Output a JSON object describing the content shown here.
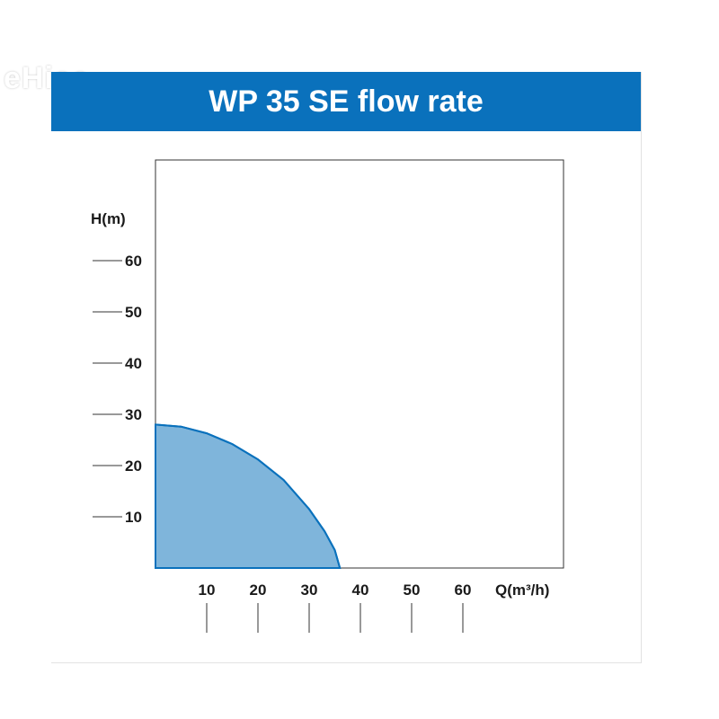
{
  "watermark": "eHisa",
  "colors": {
    "banner": "#0a71bc",
    "fill": "#7fb5db",
    "curve": "#0a71bc",
    "axis": "#333333"
  },
  "chart_data": {
    "type": "area",
    "title": "WP 35 SE flow rate",
    "xlabel": "Q(m³/h)",
    "ylabel": "H(m)",
    "xlim": [
      0,
      80
    ],
    "ylim": [
      0,
      80
    ],
    "xticks": [
      10,
      20,
      30,
      40,
      50,
      60
    ],
    "yticks": [
      10,
      20,
      30,
      40,
      50,
      60
    ],
    "series": [
      {
        "name": "WP 35 SE",
        "x": [
          0,
          5,
          10,
          15,
          20,
          25,
          30,
          33,
          35,
          36
        ],
        "y": [
          28,
          27.6,
          26.3,
          24.2,
          21.2,
          17.2,
          11.5,
          7.2,
          3.5,
          0
        ]
      }
    ],
    "grid": false
  }
}
